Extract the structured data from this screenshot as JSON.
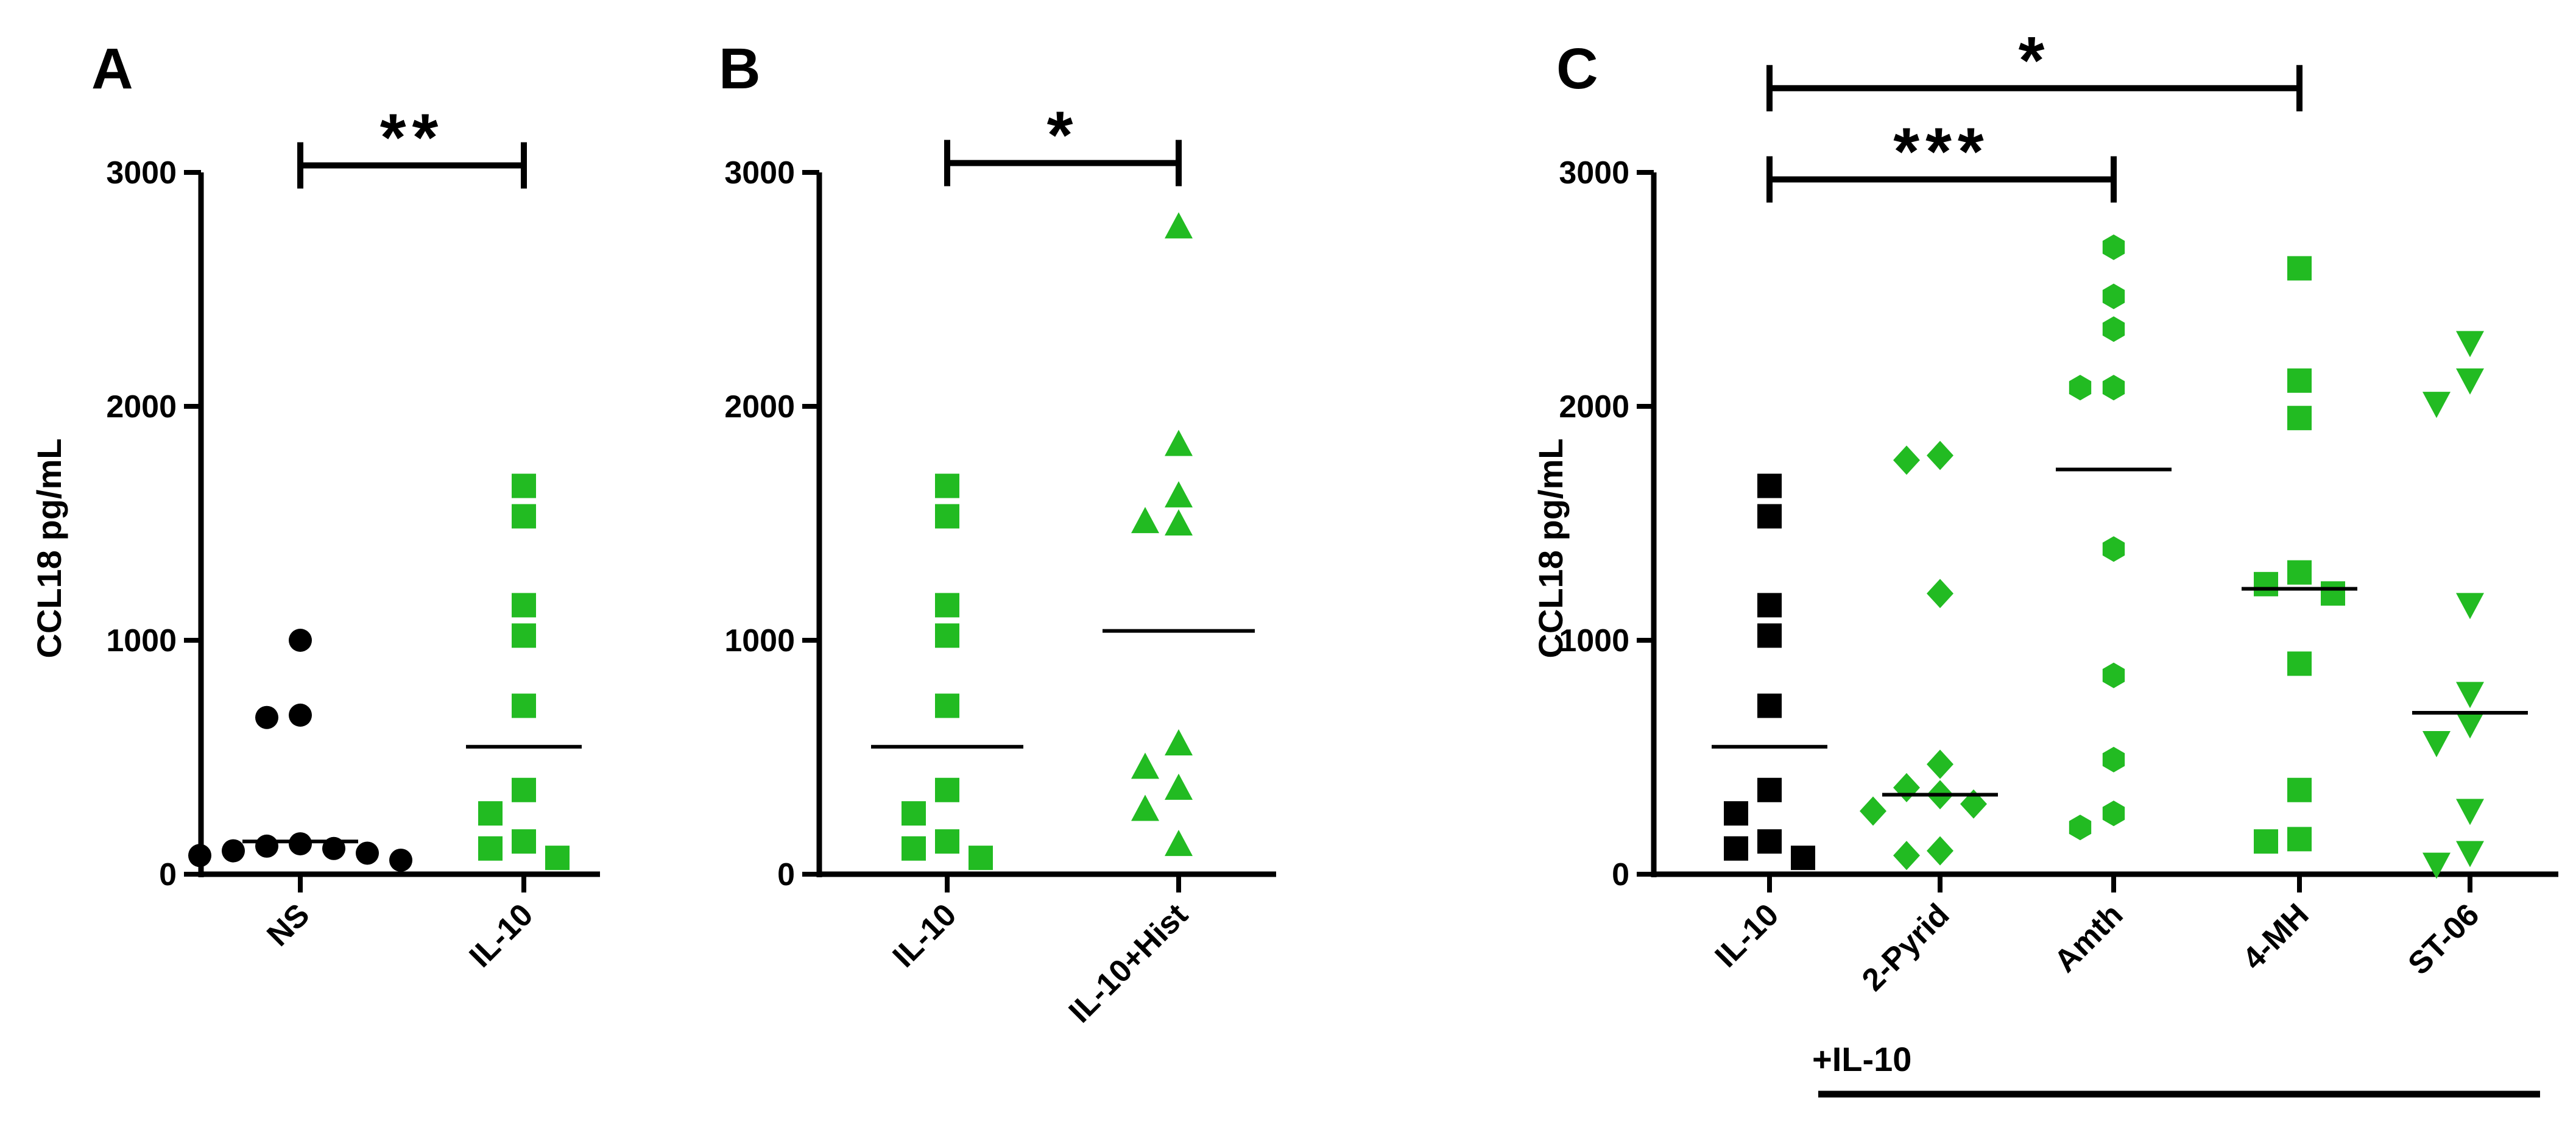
{
  "colors": {
    "black": "#000000",
    "green": "#22bb22"
  },
  "chart_data": [
    {
      "type": "scatter",
      "panel_label": "A",
      "ylabel": "CCL18 pg/mL",
      "ylim": [
        0,
        3000
      ],
      "yticks": [
        "0",
        "1000",
        "2000",
        "3000"
      ],
      "categories": [
        "NS",
        "IL-10"
      ],
      "series": [
        {
          "name": "NS",
          "marker": "circle",
          "color": "#000000",
          "values": [
            1000,
            680,
            670,
            130,
            120,
            110,
            100,
            90,
            80,
            60
          ],
          "mean": 140
        },
        {
          "name": "IL-10",
          "marker": "square",
          "color": "#22bb22",
          "values": [
            1660,
            1530,
            1150,
            1020,
            720,
            360,
            260,
            140,
            110,
            70
          ],
          "mean": 545
        }
      ],
      "brackets": [
        {
          "from": 0,
          "to": 1,
          "y": 3030,
          "label": "**"
        }
      ]
    },
    {
      "type": "scatter",
      "panel_label": "B",
      "ylabel": "",
      "ylim": [
        0,
        3000
      ],
      "yticks": [
        "0",
        "1000",
        "2000",
        "3000"
      ],
      "categories": [
        "IL-10",
        "IL-10+Hist"
      ],
      "series": [
        {
          "name": "IL-10",
          "marker": "square",
          "color": "#22bb22",
          "values": [
            1660,
            1530,
            1150,
            1020,
            720,
            360,
            260,
            140,
            110,
            70
          ],
          "mean": 545
        },
        {
          "name": "IL-10+Hist",
          "marker": "triangle-up",
          "color": "#22bb22",
          "values": [
            2770,
            1840,
            1620,
            1510,
            1500,
            560,
            460,
            370,
            280,
            130
          ],
          "mean": 1040
        }
      ],
      "brackets": [
        {
          "from": 0,
          "to": 1,
          "y": 3040,
          "label": "*"
        }
      ]
    },
    {
      "type": "scatter",
      "panel_label": "C",
      "ylabel": "CCL18 pg/mL",
      "ylim": [
        0,
        3000
      ],
      "yticks": [
        "0",
        "1000",
        "2000",
        "3000"
      ],
      "categories": [
        "IL-10",
        "2-Pyrid",
        "Amth",
        "4-MH",
        "ST-06"
      ],
      "group_label": "+IL-10",
      "series": [
        {
          "name": "IL-10",
          "marker": "square",
          "color": "#000000",
          "values": [
            1660,
            1530,
            1150,
            1020,
            720,
            360,
            260,
            140,
            110,
            70
          ],
          "mean": 545
        },
        {
          "name": "2-Pyrid",
          "marker": "diamond",
          "color": "#22bb22",
          "values": [
            1790,
            1770,
            1200,
            470,
            370,
            340,
            300,
            270,
            100,
            80
          ],
          "mean": 340
        },
        {
          "name": "Amth",
          "marker": "hexagon",
          "color": "#22bb22",
          "values": [
            2680,
            2470,
            2330,
            2080,
            2080,
            1390,
            850,
            490,
            260,
            200
          ],
          "mean": 1730
        },
        {
          "name": "4-MH",
          "marker": "square",
          "color": "#22bb22",
          "values": [
            2590,
            2110,
            1950,
            1290,
            1240,
            1200,
            900,
            360,
            150,
            140
          ],
          "mean": 1220
        },
        {
          "name": "ST-06",
          "marker": "triangle-down",
          "color": "#22bb22",
          "values": [
            2270,
            2110,
            2010,
            1150,
            770,
            640,
            560,
            270,
            90,
            40
          ],
          "mean": 690
        }
      ],
      "brackets": [
        {
          "from": 0,
          "to": 3,
          "y": 3360,
          "label": "*"
        },
        {
          "from": 0,
          "to": 2,
          "y": 2970,
          "label": "***"
        }
      ]
    }
  ]
}
